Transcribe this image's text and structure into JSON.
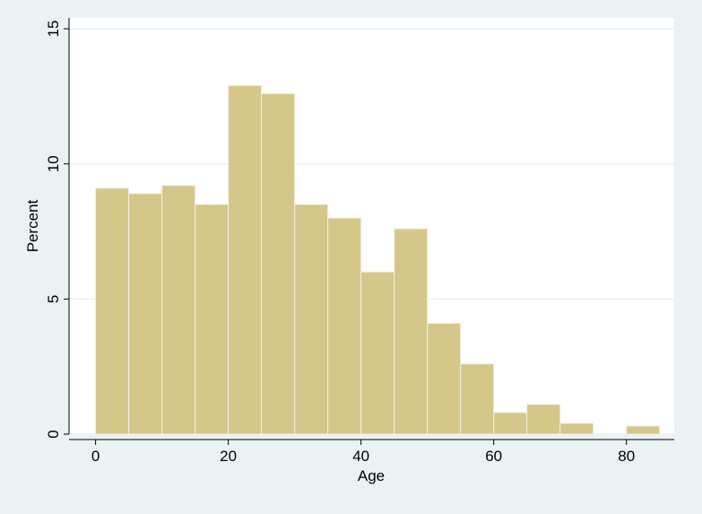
{
  "chart_data": {
    "type": "histogram",
    "bins": [
      0,
      5,
      10,
      15,
      20,
      25,
      30,
      35,
      40,
      45,
      50,
      55,
      60,
      65,
      70,
      75,
      80,
      85
    ],
    "values": [
      9.1,
      8.9,
      9.2,
      8.5,
      12.9,
      12.6,
      8.5,
      8.0,
      6.0,
      7.6,
      4.1,
      2.6,
      0.8,
      1.1,
      0.4,
      0,
      0.3
    ],
    "color": "#d5c78a",
    "xlabel": "Age",
    "ylabel": "Percent",
    "xlim": [
      -4,
      87.2
    ],
    "ylim": [
      0,
      15.4
    ],
    "xticks": [
      0,
      20,
      40,
      60,
      80
    ],
    "yticks": [
      0,
      5,
      10,
      15
    ],
    "grid": true
  }
}
